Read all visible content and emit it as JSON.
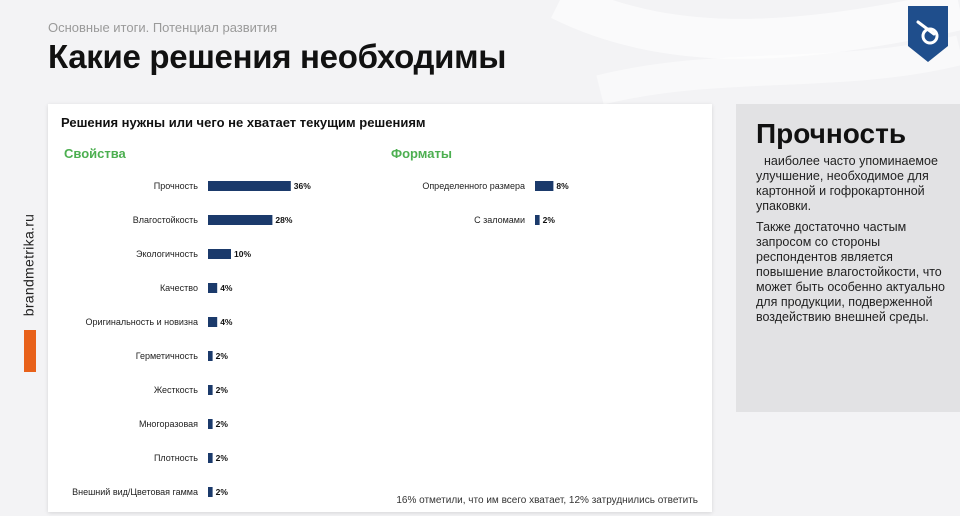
{
  "header": {
    "subtitle": "Основные итоги. Потенциал развития",
    "title": "Какие решения необходимы"
  },
  "brand": {
    "site": "brandmetrika.ru",
    "accent_color": "#e8611a",
    "logo_color": "#1f4e8c"
  },
  "chart": {
    "heading": "Решения нужны или чего не хватает текущим решениям",
    "footnote": "16% отметили, что им всего хватает, 12% затруднились ответить",
    "group_title_color": "#4caf50",
    "bar_color": "#1b3a6b"
  },
  "chart_data": [
    {
      "type": "bar",
      "orientation": "horizontal",
      "title": "Свойства",
      "categories": [
        "Прочность",
        "Влагостойкость",
        "Экологичность",
        "Качество",
        "Оригинальность и новизна",
        "Герметичность",
        "Жесткость",
        "Многоразовая",
        "Плотность",
        "Внешний вид/Цветовая гамма"
      ],
      "values": [
        36,
        28,
        10,
        4,
        4,
        2,
        2,
        2,
        2,
        2
      ],
      "labels": [
        "36%",
        "28%",
        "10%",
        "4%",
        "4%",
        "2%",
        "2%",
        "2%",
        "2%",
        "2%"
      ],
      "unit": "%"
    },
    {
      "type": "bar",
      "orientation": "horizontal",
      "title": "Форматы",
      "categories": [
        "Определенного размера",
        "С заломами"
      ],
      "values": [
        8,
        2
      ],
      "labels": [
        "8%",
        "2%"
      ],
      "unit": "%"
    }
  ],
  "panel": {
    "title": "Прочность",
    "paragraph1": "наиболее часто упоминаемое улучшение, необходимое для картонной и гофрокартонной упаковки.",
    "paragraph2": "Также достаточно частым запросом со стороны респондентов является повышение влагостойкости, что может быть особенно актуально для продукции, подверженной воздействию внешней среды."
  }
}
